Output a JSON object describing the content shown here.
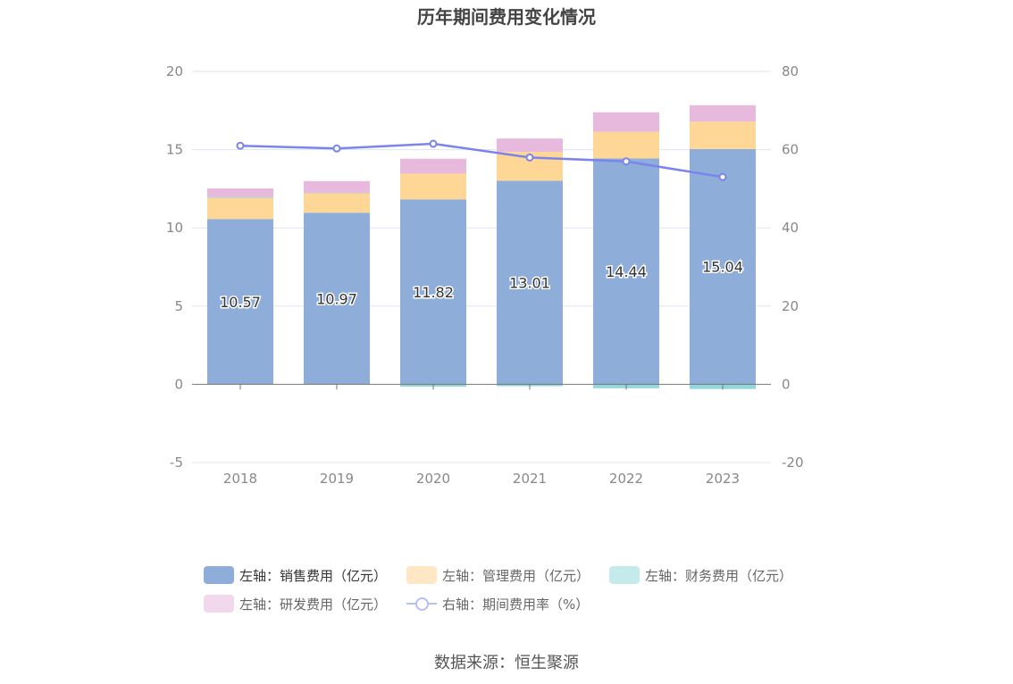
{
  "chart_data": {
    "type": "bar",
    "title": "历年期间费用变化情况",
    "categories": [
      "2018",
      "2019",
      "2020",
      "2021",
      "2022",
      "2023"
    ],
    "stacked": true,
    "y_left": {
      "ylim": [
        -5,
        20
      ],
      "ticks": [
        -5,
        0,
        5,
        10,
        15,
        20
      ]
    },
    "y_right": {
      "ylim": [
        -20,
        80
      ],
      "ticks": [
        -20,
        0,
        20,
        40,
        60,
        80
      ]
    },
    "series": [
      {
        "name": "左轴：销售费用（亿元）",
        "axis": "left",
        "kind": "bar",
        "color": "#8eadd9",
        "values": [
          10.57,
          10.97,
          11.82,
          13.01,
          14.44,
          15.04
        ],
        "show_labels": true
      },
      {
        "name": "左轴：管理费用（亿元）",
        "axis": "left",
        "kind": "bar",
        "color": "#fed796",
        "values": [
          1.35,
          1.25,
          1.65,
          1.85,
          1.7,
          1.75
        ]
      },
      {
        "name": "左轴：财务费用（亿元）",
        "axis": "left",
        "kind": "bar",
        "color": "#8fd8dc",
        "values": [
          0.05,
          0.02,
          -0.15,
          -0.12,
          -0.25,
          -0.3
        ]
      },
      {
        "name": "左轴：研发费用（亿元）",
        "axis": "left",
        "kind": "bar",
        "color": "#e7b9dc",
        "values": [
          0.55,
          0.75,
          0.95,
          0.85,
          1.25,
          1.05
        ]
      },
      {
        "name": "右轴：期间费用率（%）",
        "axis": "right",
        "kind": "line",
        "color": "#7b84ec",
        "values": [
          61.0,
          60.3,
          61.5,
          58.0,
          57.0,
          53.0
        ]
      }
    ],
    "legend_position": "bottom",
    "grid": true
  },
  "source_text": "数据来源：恒生聚源"
}
